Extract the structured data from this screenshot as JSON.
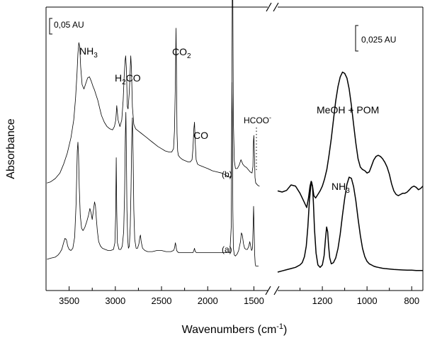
{
  "chart_data": {
    "type": "line",
    "xlabel": "Wavenumbers (cm",
    "xlabel_sup": "-1",
    "xlabel_close": ")",
    "ylabel": "Absorbance",
    "x_reversed": true,
    "axis_break": true,
    "left_panel": {
      "xlim": [
        3750,
        1350
      ],
      "ticks": [
        "3500",
        "3000",
        "2500",
        "2000",
        "1500"
      ],
      "tick_values": [
        3500,
        3000,
        2500,
        2000,
        1500
      ],
      "scale_bar": "0,05 AU"
    },
    "right_panel": {
      "xlim": [
        1400,
        750
      ],
      "ticks": [
        "1200",
        "1000",
        "800"
      ],
      "tick_values": [
        1200,
        1000,
        800
      ],
      "scale_bar": "0,025 AU"
    },
    "series": [
      {
        "name": "(b)",
        "panel": "left",
        "x": [
          3740,
          3700,
          3650,
          3600,
          3560,
          3520,
          3480,
          3450,
          3430,
          3415,
          3405,
          3395,
          3385,
          3375,
          3360,
          3340,
          3320,
          3300,
          3280,
          3260,
          3240,
          3225,
          3210,
          3190,
          3170,
          3150,
          3120,
          3090,
          3060,
          3030,
          3010,
          2995,
          2985,
          2970,
          2950,
          2930,
          2915,
          2905,
          2895,
          2888,
          2880,
          2870,
          2862,
          2850,
          2840,
          2833,
          2825,
          2815,
          2800,
          2780,
          2750,
          2720,
          2690,
          2660,
          2630,
          2600,
          2570,
          2540,
          2500,
          2460,
          2420,
          2390,
          2370,
          2360,
          2350,
          2343,
          2338,
          2332,
          2325,
          2318,
          2300,
          2270,
          2240,
          2210,
          2190,
          2170,
          2160,
          2150,
          2143,
          2135,
          2125,
          2110,
          2090,
          2060,
          2030,
          2000,
          1950,
          1900,
          1850,
          1800,
          1760,
          1745,
          1738,
          1733,
          1728,
          1722,
          1712,
          1700,
          1680,
          1660,
          1640,
          1620,
          1600,
          1580,
          1560,
          1540,
          1520,
          1510,
          1505,
          1500,
          1494,
          1488,
          1480,
          1460,
          1440
        ],
        "y": [
          0.005,
          0.006,
          0.009,
          0.014,
          0.022,
          0.032,
          0.046,
          0.062,
          0.082,
          0.104,
          0.122,
          0.132,
          0.128,
          0.11,
          0.094,
          0.09,
          0.095,
          0.1,
          0.101,
          0.097,
          0.092,
          0.089,
          0.085,
          0.08,
          0.073,
          0.066,
          0.06,
          0.056,
          0.054,
          0.053,
          0.056,
          0.062,
          0.075,
          0.062,
          0.056,
          0.062,
          0.08,
          0.1,
          0.115,
          0.12,
          0.108,
          0.074,
          0.072,
          0.086,
          0.105,
          0.12,
          0.108,
          0.074,
          0.058,
          0.054,
          0.052,
          0.05,
          0.048,
          0.046,
          0.044,
          0.042,
          0.04,
          0.038,
          0.036,
          0.034,
          0.033,
          0.033,
          0.036,
          0.052,
          0.095,
          0.145,
          0.11,
          0.05,
          0.034,
          0.03,
          0.028,
          0.026,
          0.025,
          0.024,
          0.024,
          0.026,
          0.036,
          0.054,
          0.06,
          0.042,
          0.026,
          0.022,
          0.021,
          0.02,
          0.019,
          0.018,
          0.016,
          0.015,
          0.014,
          0.012,
          0.01,
          0.012,
          0.08,
          0.225,
          0.17,
          0.06,
          0.025,
          0.018,
          0.018,
          0.021,
          0.026,
          0.022,
          0.02,
          0.019,
          0.017,
          0.015,
          0.014,
          0.02,
          0.042,
          0.048,
          0.032,
          0.01,
          0.005,
          0.003,
          0.002
        ]
      },
      {
        "name": "(a)",
        "panel": "left",
        "x": [
          3740,
          3700,
          3650,
          3620,
          3600,
          3580,
          3560,
          3545,
          3530,
          3515,
          3500,
          3480,
          3460,
          3440,
          3425,
          3412,
          3405,
          3398,
          3390,
          3380,
          3365,
          3350,
          3330,
          3310,
          3290,
          3275,
          3262,
          3250,
          3238,
          3225,
          3215,
          3205,
          3195,
          3180,
          3160,
          3140,
          3110,
          3080,
          3050,
          3020,
          3005,
          2996,
          2990,
          2985,
          2978,
          2960,
          2940,
          2925,
          2910,
          2900,
          2892,
          2886,
          2880,
          2874,
          2866,
          2858,
          2848,
          2838,
          2830,
          2822,
          2815,
          2808,
          2800,
          2790,
          2775,
          2760,
          2745,
          2735,
          2728,
          2720,
          2705,
          2680,
          2650,
          2600,
          2550,
          2500,
          2450,
          2400,
          2370,
          2360,
          2350,
          2343,
          2336,
          2328,
          2315,
          2290,
          2250,
          2200,
          2160,
          2150,
          2143,
          2135,
          2120,
          2080,
          2040,
          2000,
          1950,
          1900,
          1850,
          1800,
          1760,
          1745,
          1738,
          1733,
          1728,
          1722,
          1712,
          1700,
          1680,
          1665,
          1655,
          1645,
          1635,
          1625,
          1612,
          1600,
          1585,
          1570,
          1555,
          1545,
          1535,
          1525,
          1515,
          1508,
          1503,
          1498,
          1492,
          1486,
          1480,
          1465,
          1450
        ],
        "y": [
          0.0,
          0.001,
          0.002,
          0.004,
          0.006,
          0.009,
          0.015,
          0.019,
          0.018,
          0.012,
          0.009,
          0.008,
          0.01,
          0.02,
          0.05,
          0.098,
          0.106,
          0.094,
          0.065,
          0.04,
          0.028,
          0.026,
          0.029,
          0.034,
          0.04,
          0.046,
          0.042,
          0.036,
          0.044,
          0.052,
          0.048,
          0.036,
          0.026,
          0.016,
          0.012,
          0.01,
          0.009,
          0.008,
          0.008,
          0.009,
          0.015,
          0.04,
          0.092,
          0.045,
          0.015,
          0.009,
          0.009,
          0.012,
          0.025,
          0.06,
          0.11,
          0.133,
          0.092,
          0.045,
          0.018,
          0.01,
          0.012,
          0.03,
          0.065,
          0.11,
          0.128,
          0.095,
          0.045,
          0.018,
          0.01,
          0.01,
          0.014,
          0.02,
          0.022,
          0.016,
          0.01,
          0.008,
          0.007,
          0.007,
          0.008,
          0.008,
          0.007,
          0.007,
          0.008,
          0.01,
          0.015,
          0.012,
          0.008,
          0.007,
          0.006,
          0.006,
          0.006,
          0.006,
          0.006,
          0.008,
          0.01,
          0.007,
          0.006,
          0.006,
          0.006,
          0.006,
          0.006,
          0.006,
          0.006,
          0.006,
          0.006,
          0.03,
          0.16,
          0.13,
          0.045,
          0.01,
          0.004,
          0.003,
          0.005,
          0.008,
          0.012,
          0.016,
          0.024,
          0.022,
          0.014,
          0.01,
          0.009,
          0.009,
          0.012,
          0.016,
          0.012,
          0.008,
          0.01,
          0.03,
          0.048,
          0.03,
          0.005,
          -0.004,
          -0.006,
          -0.006,
          -0.006
        ]
      },
      {
        "name": "MeOH + POM",
        "panel": "right",
        "x": [
          1400,
          1380,
          1360,
          1340,
          1320,
          1300,
          1285,
          1270,
          1262,
          1255,
          1250,
          1244,
          1238,
          1230,
          1220,
          1210,
          1200,
          1190,
          1180,
          1170,
          1160,
          1150,
          1140,
          1130,
          1120,
          1110,
          1100,
          1090,
          1080,
          1070,
          1060,
          1050,
          1040,
          1030,
          1020,
          1010,
          1000,
          990,
          980,
          970,
          960,
          950,
          940,
          930,
          920,
          910,
          900,
          890,
          880,
          870,
          860,
          850,
          840,
          830,
          820,
          810,
          800,
          790,
          780,
          770,
          760,
          750
        ],
        "y": [
          -0.001,
          -0.0015,
          -0.0008,
          0.0015,
          0.001,
          -0.002,
          -0.005,
          -0.008,
          -0.004,
          0.001,
          0.003,
          0.001,
          -0.003,
          -0.004,
          -0.0025,
          -0.001,
          0.001,
          0.004,
          0.008,
          0.014,
          0.021,
          0.029,
          0.037,
          0.043,
          0.047,
          0.049,
          0.0485,
          0.0465,
          0.042,
          0.035,
          0.027,
          0.019,
          0.0125,
          0.009,
          0.008,
          0.0075,
          0.0065,
          0.007,
          0.0095,
          0.012,
          0.0135,
          0.014,
          0.0135,
          0.0125,
          0.011,
          0.009,
          0.006,
          0.002,
          -0.001,
          -0.0025,
          -0.003,
          -0.0025,
          -0.002,
          -0.002,
          -0.0015,
          -0.0005,
          0.0005,
          0.001,
          0.0005,
          -0.0005,
          0.0,
          0.001
        ]
      },
      {
        "name": "NH3",
        "panel": "right",
        "x": [
          1400,
          1380,
          1360,
          1340,
          1320,
          1300,
          1290,
          1280,
          1272,
          1265,
          1258,
          1252,
          1248,
          1244,
          1240,
          1235,
          1228,
          1220,
          1210,
          1200,
          1192,
          1186,
          1181,
          1176,
          1172,
          1167,
          1160,
          1150,
          1140,
          1130,
          1120,
          1110,
          1100,
          1090,
          1080,
          1070,
          1060,
          1050,
          1040,
          1030,
          1020,
          1010,
          1000,
          990,
          980,
          970,
          960,
          950,
          940,
          930,
          920,
          900,
          880,
          860,
          840,
          820,
          800,
          780,
          760,
          750
        ],
        "y": [
          0.0,
          0.0005,
          0.001,
          0.0015,
          0.002,
          0.003,
          0.004,
          0.0065,
          0.011,
          0.019,
          0.03,
          0.036,
          0.038,
          0.036,
          0.029,
          0.018,
          0.008,
          0.003,
          0.002,
          0.003,
          0.007,
          0.014,
          0.019,
          0.017,
          0.011,
          0.006,
          0.0035,
          0.004,
          0.006,
          0.01,
          0.016,
          0.024,
          0.031,
          0.037,
          0.04,
          0.0395,
          0.036,
          0.03,
          0.0225,
          0.0155,
          0.01,
          0.0065,
          0.0045,
          0.0035,
          0.003,
          0.0025,
          0.0022,
          0.002,
          0.0018,
          0.0016,
          0.0015,
          0.0013,
          0.0011,
          0.001,
          0.0009,
          0.0008,
          0.0008,
          0.0007,
          0.0007,
          0.0007
        ]
      }
    ],
    "annotations": {
      "nh3_left": "NH",
      "nh3_left_sub": "3",
      "h2co_a": "H",
      "h2co_sub": "2",
      "h2co_b": "CO",
      "co2_a": "CO",
      "co2_sub": "2",
      "co": "CO",
      "hcoo": "HCOO",
      "hcoo_sup": "-",
      "label_b": "(b)",
      "label_a": "(a)",
      "meoh_pom": "MeOH + POM",
      "nh3_right": "NH",
      "nh3_right_sub": "3"
    }
  }
}
